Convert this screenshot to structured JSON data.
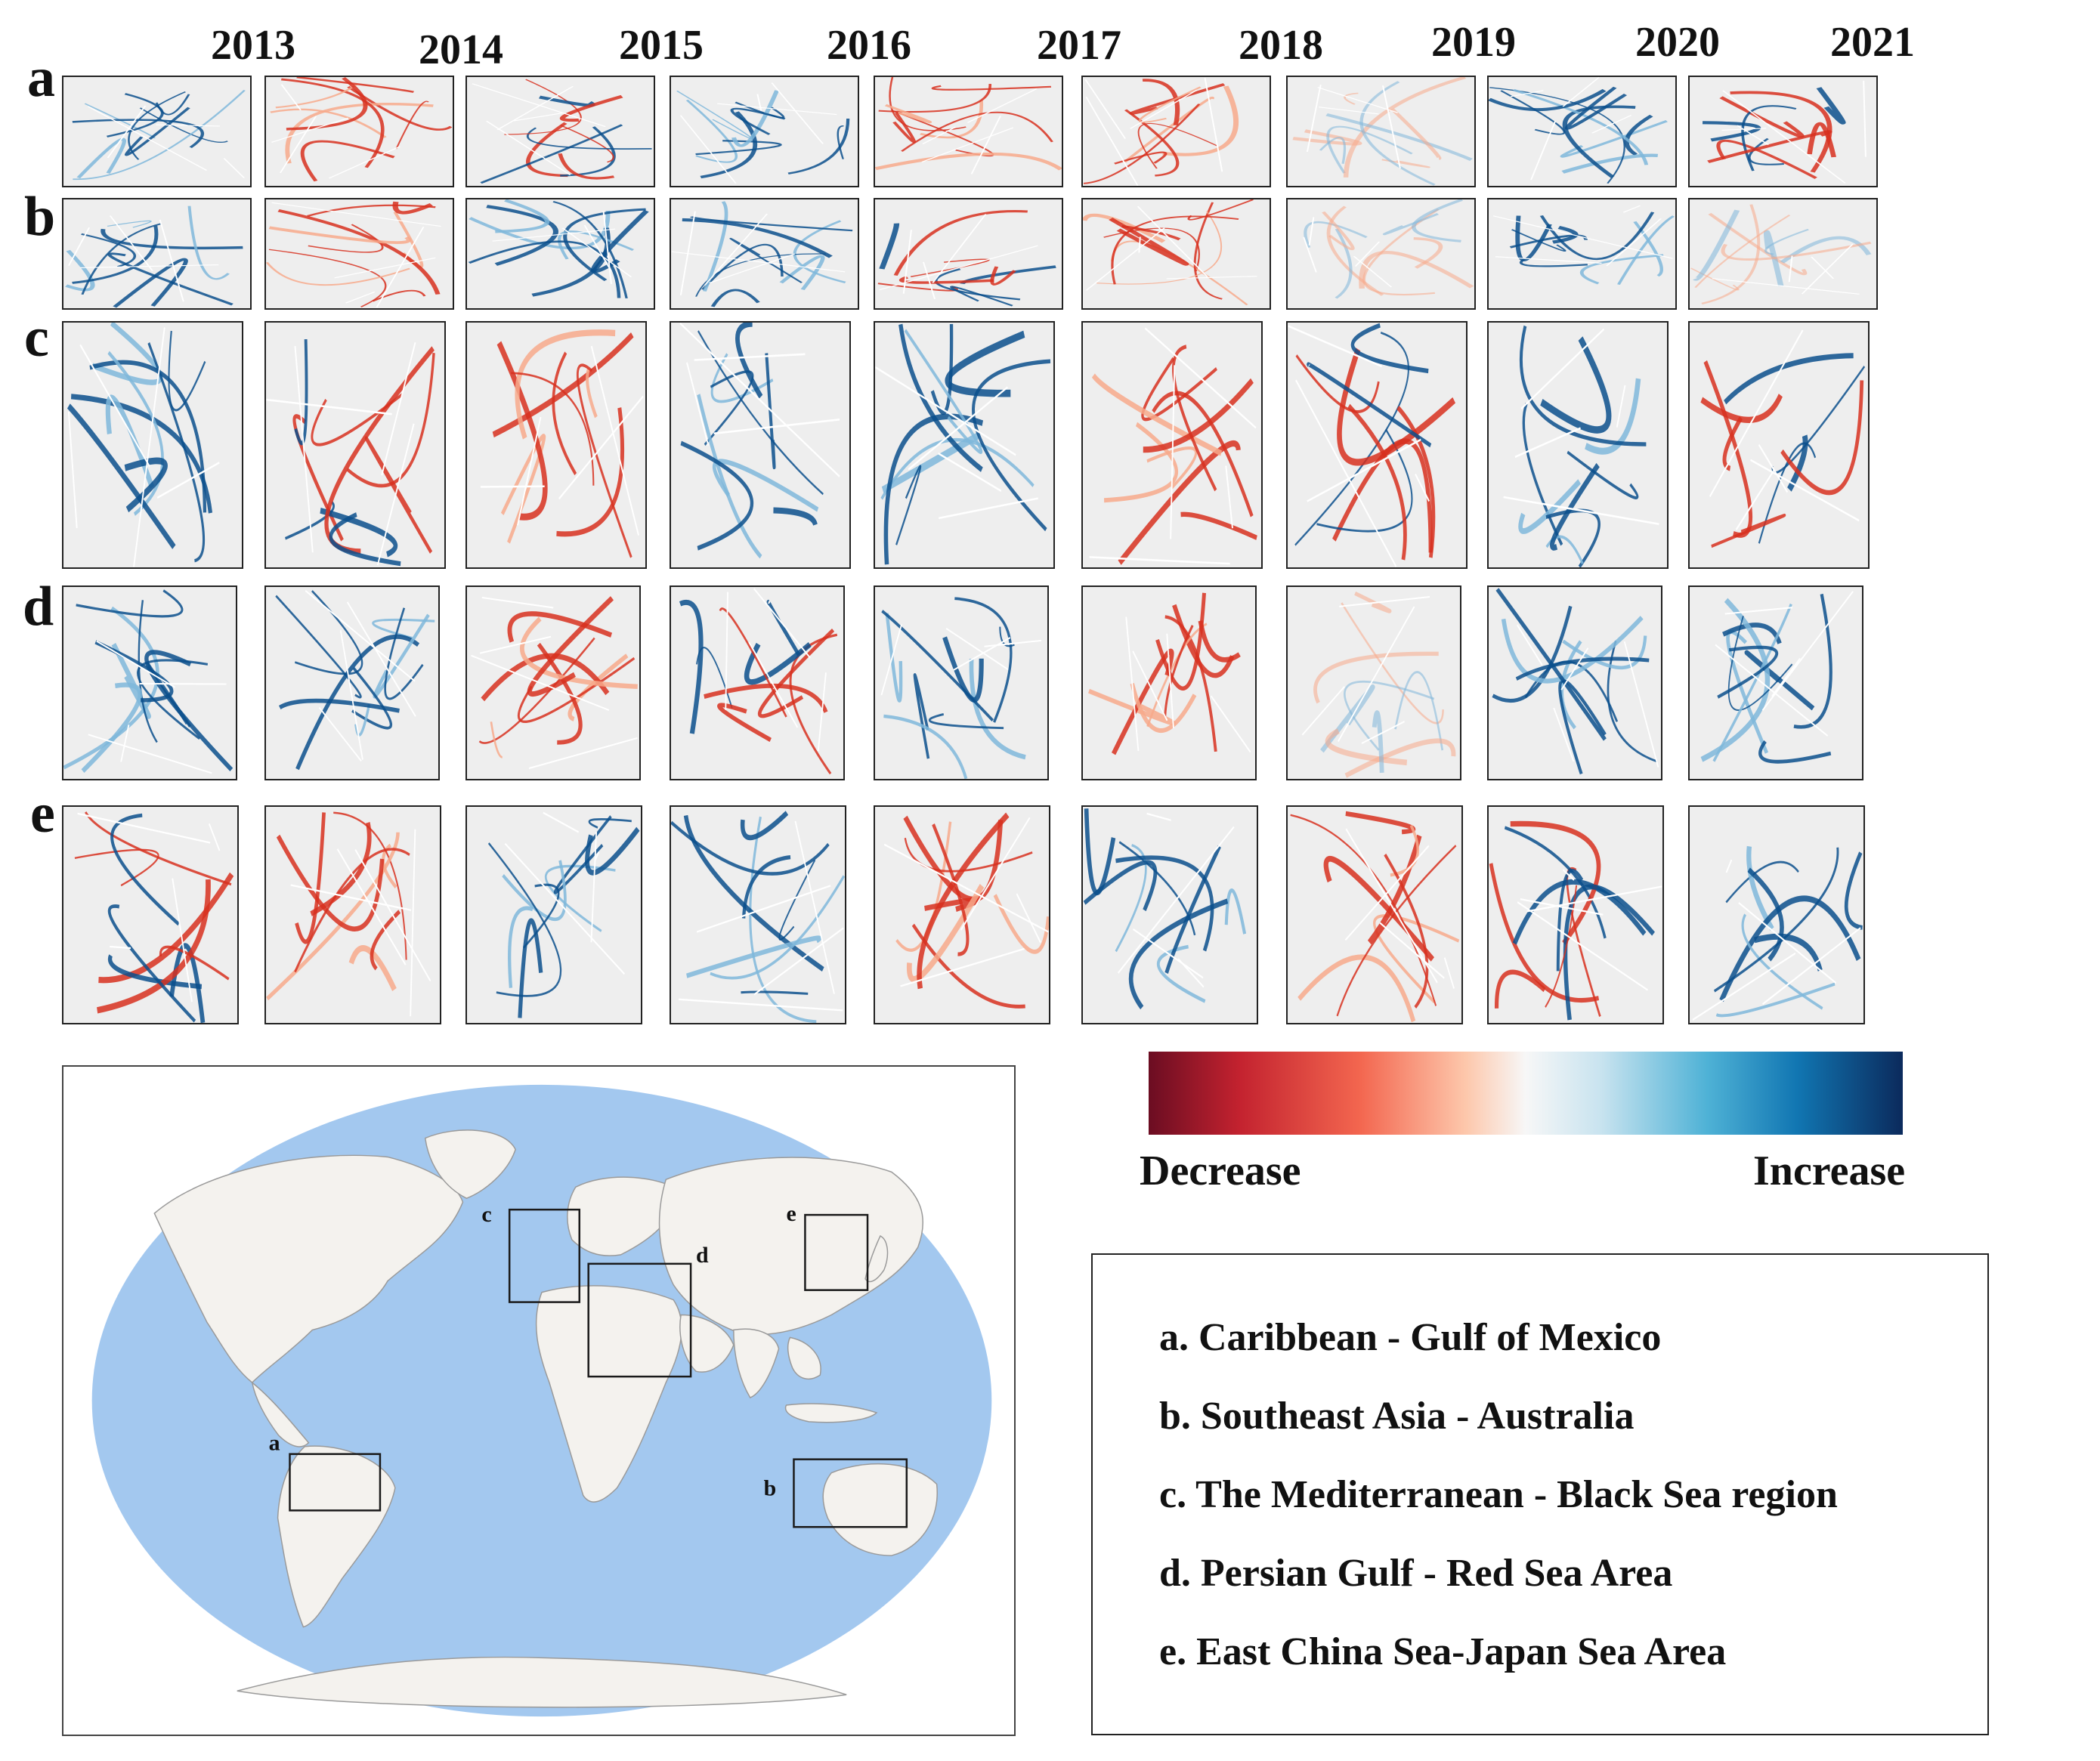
{
  "years": [
    "2013",
    "2014",
    "2015",
    "2016",
    "2017",
    "2018",
    "2019",
    "2020",
    "2021"
  ],
  "row_labels": [
    "a",
    "b",
    "c",
    "d",
    "e"
  ],
  "colorbar": {
    "low_label": "Decrease",
    "high_label": "Increase",
    "colors": [
      "#6b0d22",
      "#c3222f",
      "#f3664f",
      "#fdc7ab",
      "#f7f7f7",
      "#c8e3ef",
      "#4fb2d6",
      "#1176b2",
      "#0b2a5c"
    ]
  },
  "map_markers": [
    "a",
    "b",
    "c",
    "d",
    "e"
  ],
  "legend": [
    "a. Caribbean - Gulf of Mexico",
    "b. Southeast Asia - Australia",
    "c. The Mediterranean - Black Sea region",
    "d. Persian Gulf - Red Sea Area",
    "e. East China Sea-Japan Sea Area"
  ],
  "colors": {
    "ocean": "#a3c8ef",
    "land": "#f4f2ee",
    "panel_bg": "#eeeeee",
    "decrease": "#d7301f",
    "increase": "#0b4f8c"
  }
}
